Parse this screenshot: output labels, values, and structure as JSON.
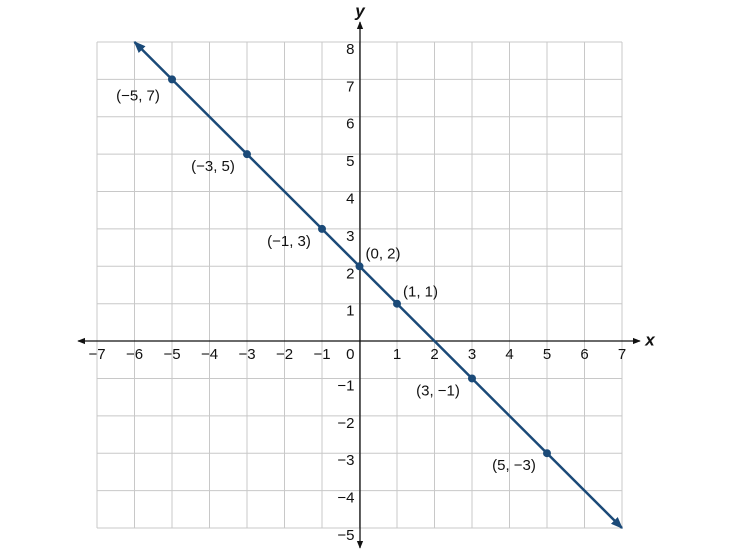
{
  "chart_data": {
    "type": "line",
    "xlabel": "x",
    "ylabel": "y",
    "xlim": [
      -7,
      7
    ],
    "ylim": [
      -5,
      8
    ],
    "xticks": [
      {
        "value": -7,
        "label": "−7"
      },
      {
        "value": -6,
        "label": "−6"
      },
      {
        "value": -5,
        "label": "−5"
      },
      {
        "value": -4,
        "label": "−4"
      },
      {
        "value": -3,
        "label": "−3"
      },
      {
        "value": -2,
        "label": "−2"
      },
      {
        "value": -1,
        "label": "−1"
      },
      0,
      1,
      2,
      3,
      4,
      5,
      6,
      7
    ],
    "yticks": [
      {
        "value": -5,
        "label": "−5"
      },
      {
        "value": -4,
        "label": "−4"
      },
      {
        "value": -3,
        "label": "−3"
      },
      {
        "value": -2,
        "label": "−2"
      },
      {
        "value": -1,
        "label": "−1"
      },
      1,
      2,
      3,
      4,
      5,
      6,
      7,
      8
    ],
    "grid": true,
    "color": "#1b4a78",
    "line": {
      "x": [
        -6,
        7
      ],
      "values": [
        8,
        -5
      ]
    },
    "points": {
      "x": [
        -5,
        -3,
        -1,
        0,
        1,
        3,
        5
      ],
      "values": [
        7,
        5,
        3,
        2,
        1,
        -1,
        -3
      ],
      "labels": [
        "(−5, 7)",
        "(−3, 5)",
        "(−1, 3)",
        "(0, 2)",
        "(1, 1)",
        "(3, −1)",
        "(5, −3)"
      ]
    }
  }
}
